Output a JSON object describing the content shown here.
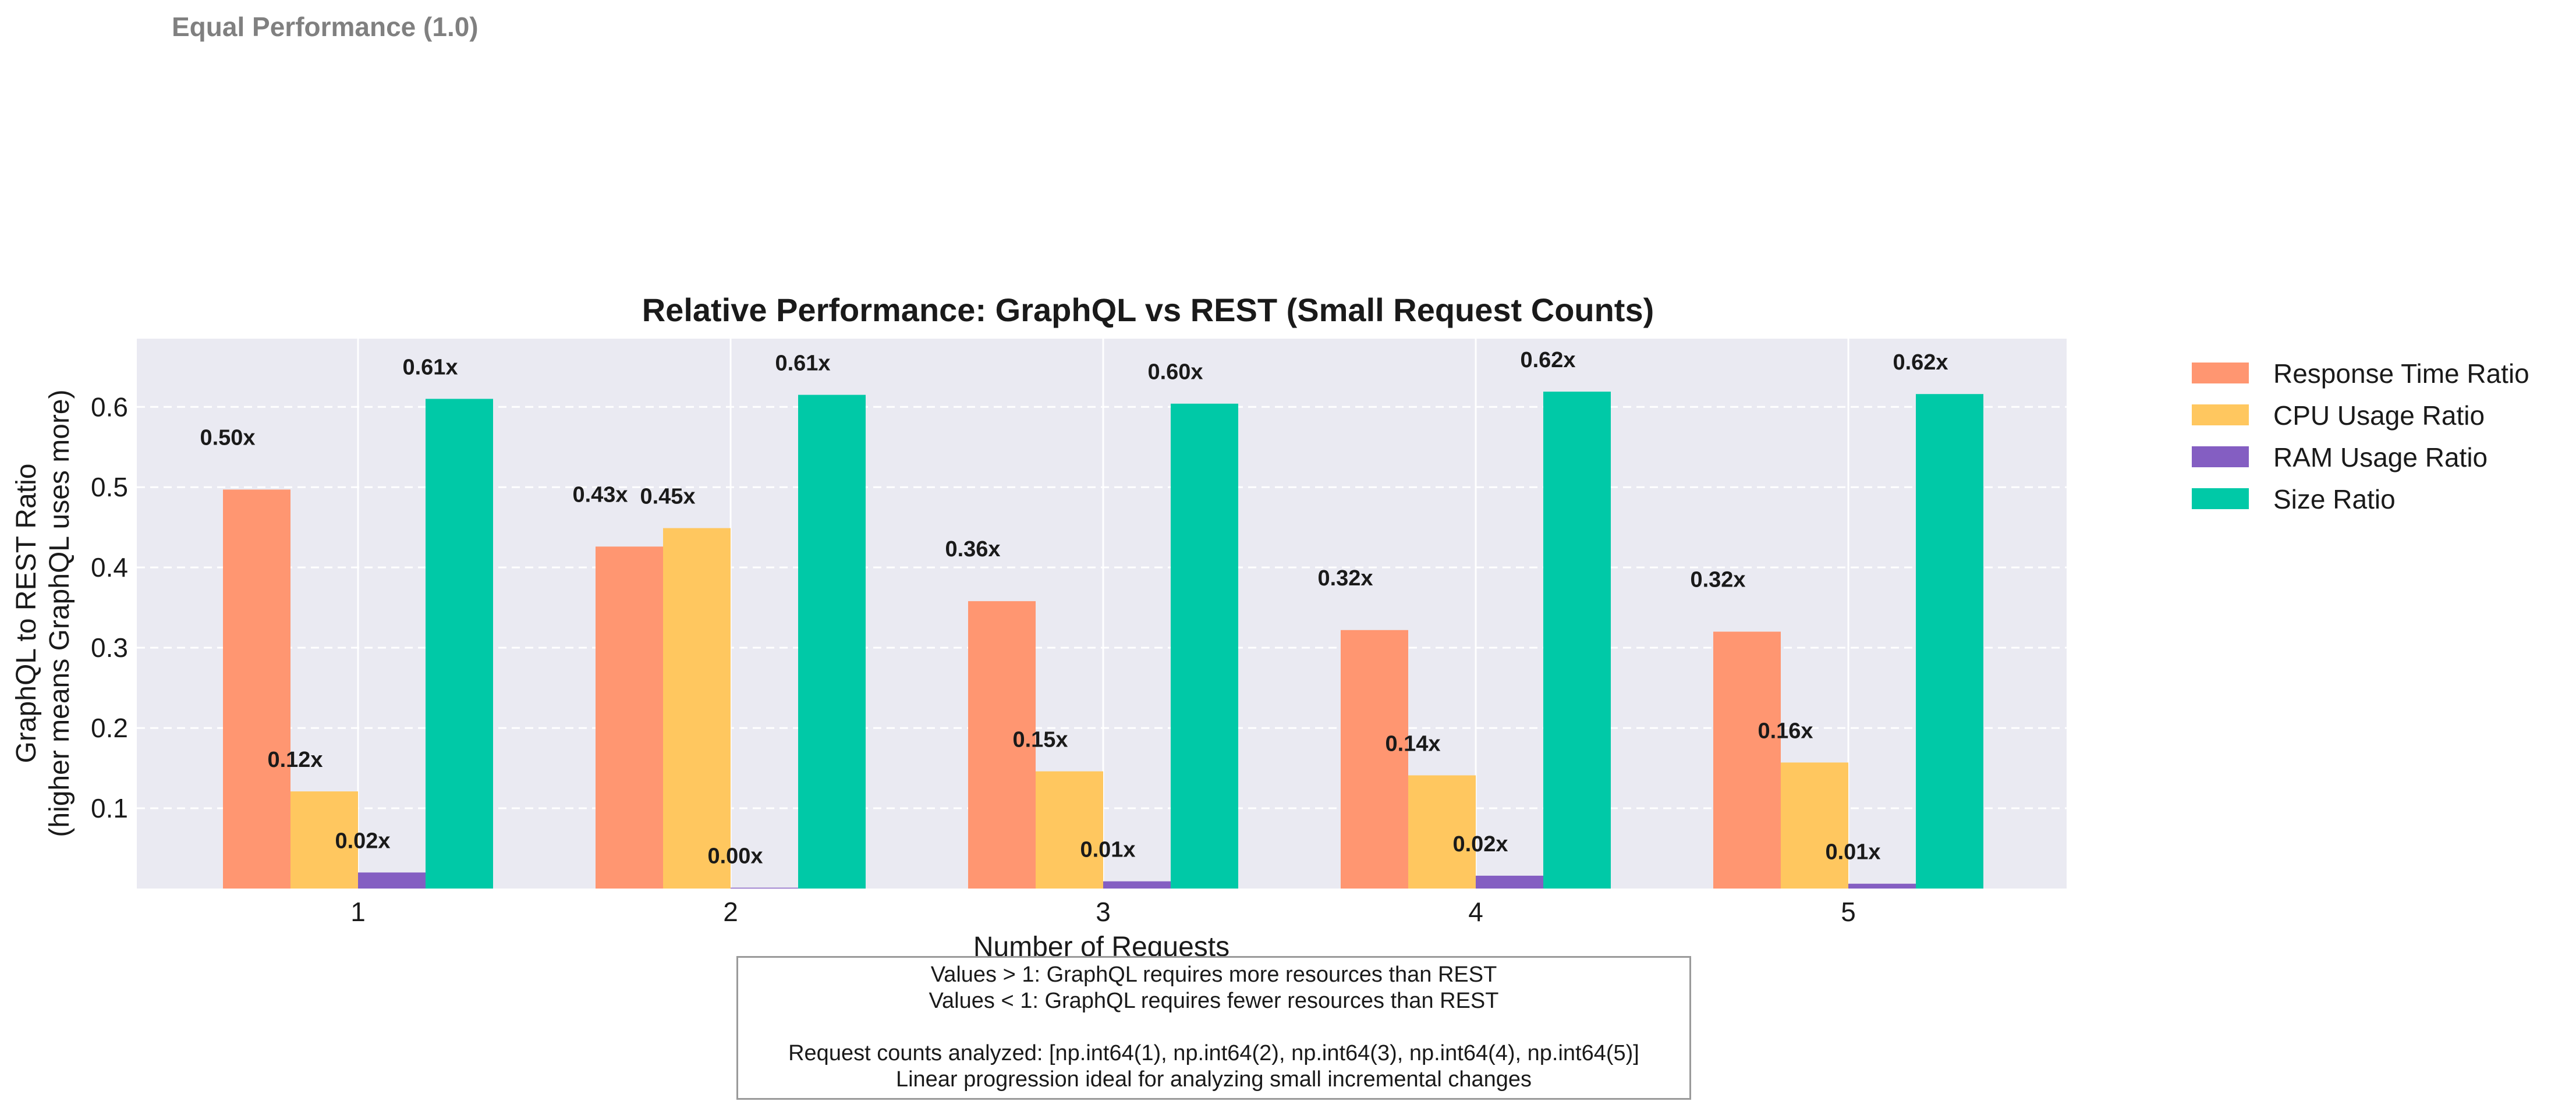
{
  "reference_label": "Equal Performance (1.0)",
  "notes": {
    "line1": "Values > 1: GraphQL requires more resources than REST",
    "line2": "Values < 1: GraphQL requires fewer resources than REST",
    "line3": "Request counts analyzed: [np.int64(1), np.int64(2), np.int64(3), np.int64(4), np.int64(5)]",
    "line4": "Linear progression ideal for analyzing small incremental changes"
  },
  "chart_data": {
    "type": "bar",
    "title": "Relative Performance: GraphQL vs REST (Small Request Counts)",
    "xlabel": "Number of Requests",
    "ylabel_lines": [
      "GraphQL to REST Ratio",
      "(higher means GraphQL uses more)"
    ],
    "categories": [
      "1",
      "2",
      "3",
      "4",
      "5"
    ],
    "yticks": [
      0.1,
      0.2,
      0.3,
      0.4,
      0.5,
      0.6
    ],
    "ylim": [
      0,
      0.685
    ],
    "grid": true,
    "legend_position": "outside-right",
    "series": [
      {
        "name": "Response Time Ratio",
        "color": "#FF9671",
        "values": [
          0.497,
          0.426,
          0.358,
          0.322,
          0.32
        ],
        "labels": [
          "0.50x",
          "0.43x",
          "0.36x",
          "0.32x",
          "0.32x"
        ]
      },
      {
        "name": "CPU Usage Ratio",
        "color": "#FFC75F",
        "values": [
          0.121,
          0.449,
          0.146,
          0.141,
          0.157
        ],
        "labels": [
          "0.12x",
          "0.45x",
          "0.15x",
          "0.14x",
          "0.16x"
        ]
      },
      {
        "name": "RAM Usage Ratio",
        "color": "#845EC2",
        "values": [
          0.02,
          0.001,
          0.009,
          0.016,
          0.006
        ],
        "labels": [
          "0.02x",
          "0.00x",
          "0.01x",
          "0.02x",
          "0.01x"
        ]
      },
      {
        "name": "Size Ratio",
        "color": "#00C9A7",
        "values": [
          0.61,
          0.615,
          0.604,
          0.619,
          0.616
        ],
        "labels": [
          "0.61x",
          "0.61x",
          "0.60x",
          "0.62x",
          "0.62x"
        ]
      }
    ]
  }
}
